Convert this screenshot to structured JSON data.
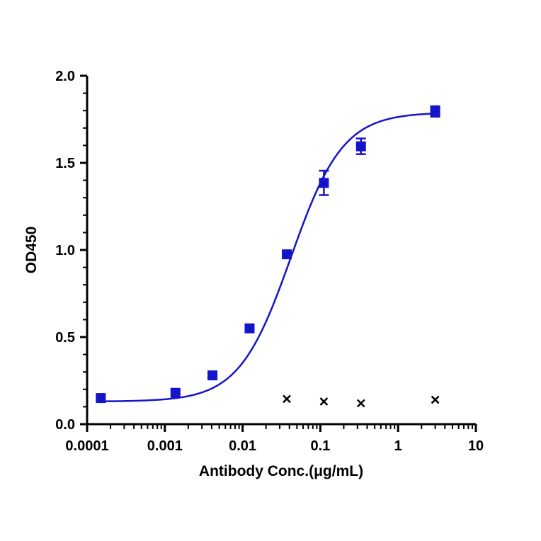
{
  "chart_data": {
    "type": "scatter",
    "title": "",
    "xlabel": "Antibody Conc.(μg/mL)",
    "ylabel": "OD450",
    "xscale": "log",
    "xlim": [
      0.0001,
      10
    ],
    "ylim": [
      0,
      2.0
    ],
    "x_ticks": [
      {
        "value": 0.0001,
        "label": "0.0001"
      },
      {
        "value": 0.001,
        "label": "0.001"
      },
      {
        "value": 0.01,
        "label": "0.01"
      },
      {
        "value": 0.1,
        "label": "0.1"
      },
      {
        "value": 1,
        "label": "1"
      },
      {
        "value": 10,
        "label": "10"
      }
    ],
    "y_ticks": [
      {
        "value": 0,
        "label": "0.0"
      },
      {
        "value": 0.5,
        "label": "0.5"
      },
      {
        "value": 1.0,
        "label": "1.0"
      },
      {
        "value": 1.5,
        "label": "1.5"
      },
      {
        "value": 2.0,
        "label": "2.0"
      }
    ],
    "grid": false,
    "legend": "none",
    "series": [
      {
        "marker": "square",
        "color": "#1414c8",
        "fit": "four-parameter-logistic",
        "fit_params": {
          "bottom": 0.13,
          "top": 1.79,
          "ec50": 0.042,
          "hill": 1.3
        },
        "points": [
          {
            "x": 0.00015,
            "y": 0.15,
            "err": 0.01
          },
          {
            "x": 0.00137,
            "y": 0.18,
            "err": 0.01
          },
          {
            "x": 0.0041,
            "y": 0.28,
            "err": 0.01
          },
          {
            "x": 0.0123,
            "y": 0.55,
            "err": 0.01
          },
          {
            "x": 0.037,
            "y": 0.975,
            "err": 0.015
          },
          {
            "x": 0.111,
            "y": 1.385,
            "err": 0.07
          },
          {
            "x": 0.333,
            "y": 1.595,
            "err": 0.045
          },
          {
            "x": 3.0,
            "y": 1.795,
            "err": 0.03
          }
        ]
      },
      {
        "marker": "x",
        "color": "#000000",
        "points": [
          {
            "x": 0.037,
            "y": 0.145
          },
          {
            "x": 0.111,
            "y": 0.13
          },
          {
            "x": 0.333,
            "y": 0.12
          },
          {
            "x": 3.0,
            "y": 0.14
          }
        ]
      }
    ]
  }
}
